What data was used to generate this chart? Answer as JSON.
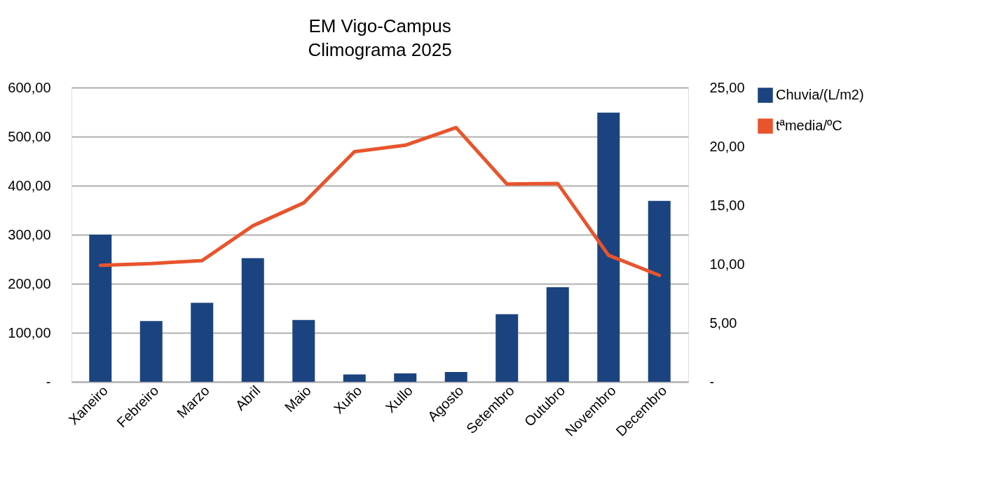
{
  "chart_data": {
    "type": "bar",
    "title": "EM Vigo-Campus",
    "subtitle": "Climograma 2025",
    "categories": [
      "Xaneiro",
      "Febreiro",
      "Marzo",
      "Abril",
      "Maio",
      "Xuño",
      "Xullo",
      "Agosto",
      "Setembro",
      "Outubro",
      "Novembro",
      "Decembro"
    ],
    "series": [
      {
        "name": "Chuvia/(L/m2)",
        "color": "#1b4380",
        "values": [
          300,
          124,
          161,
          252,
          126,
          15,
          17,
          20,
          138,
          193,
          549,
          369
        ]
      },
      {
        "name": "tªmedia/ºC",
        "type": "line",
        "axis": "y2",
        "color": "#e8542c",
        "values": [
          9.9,
          10.05,
          10.3,
          13.25,
          15.2,
          19.55,
          20.1,
          21.6,
          16.8,
          16.85,
          10.75,
          9.05
        ]
      }
    ],
    "ylim": [
      0,
      600
    ],
    "yticks": [
      {
        "value": 0,
        "label": "-"
      },
      {
        "value": 100,
        "label": "100,00"
      },
      {
        "value": 200,
        "label": "200,00"
      },
      {
        "value": 300,
        "label": "300,00"
      },
      {
        "value": 400,
        "label": "400,00"
      },
      {
        "value": 500,
        "label": "500,00"
      },
      {
        "value": 600,
        "label": "600,00"
      }
    ],
    "y2lim": [
      0,
      25
    ],
    "y2ticks": [
      {
        "value": 0,
        "label": "-"
      },
      {
        "value": 5,
        "label": "5,00"
      },
      {
        "value": 10,
        "label": "10,00"
      },
      {
        "value": 15,
        "label": "15,00"
      },
      {
        "value": 20,
        "label": "20,00"
      },
      {
        "value": 25,
        "label": "25,00"
      }
    ],
    "grid": "y",
    "legend": "right",
    "marker": "none",
    "line_style": "solid"
  }
}
